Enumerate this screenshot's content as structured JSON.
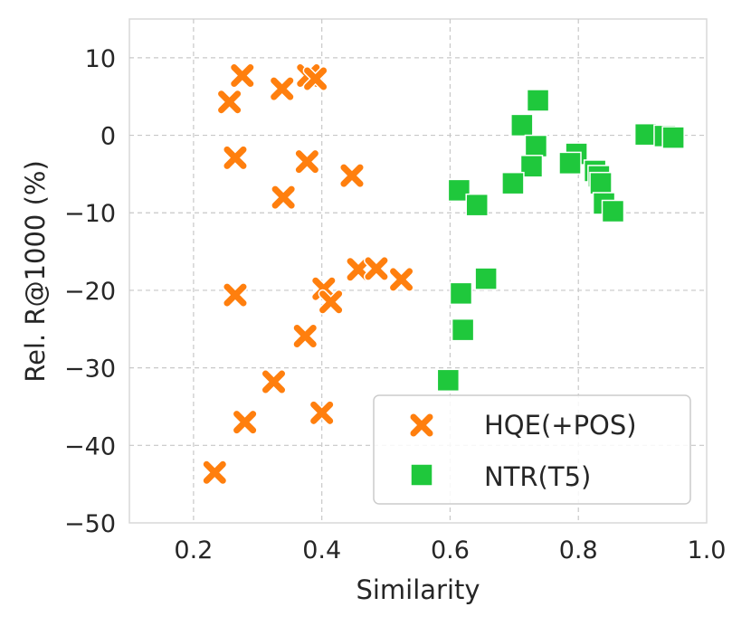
{
  "chart_data": {
    "type": "scatter",
    "xlabel": "Similarity",
    "ylabel": "Rel. R@1000 (%)",
    "xlim": [
      0.1,
      1.0
    ],
    "ylim": [
      -50,
      15
    ],
    "xticks": [
      0.2,
      0.4,
      0.6,
      0.8,
      1.0
    ],
    "xtick_labels": [
      "0.2",
      "0.4",
      "0.6",
      "0.8",
      "1.0"
    ],
    "yticks": [
      10,
      0,
      -10,
      -20,
      -30,
      -40,
      -50
    ],
    "ytick_labels": [
      "10",
      "0",
      "−10",
      "−20",
      "−30",
      "−40",
      "−50"
    ],
    "grid": true,
    "legend_position": "lower-right",
    "series": [
      {
        "name": "HQE(+POS)",
        "marker": "x",
        "color": "#ff7f0e",
        "points": [
          [
            0.276,
            7.7
          ],
          [
            0.256,
            4.3
          ],
          [
            0.338,
            6.0
          ],
          [
            0.379,
            7.7
          ],
          [
            0.39,
            7.3
          ],
          [
            0.265,
            -2.9
          ],
          [
            0.377,
            -3.4
          ],
          [
            0.447,
            -5.2
          ],
          [
            0.34,
            -8.0
          ],
          [
            0.265,
            -20.6
          ],
          [
            0.403,
            -19.8
          ],
          [
            0.414,
            -21.5
          ],
          [
            0.457,
            -17.3
          ],
          [
            0.485,
            -17.2
          ],
          [
            0.524,
            -18.6
          ],
          [
            0.374,
            -25.9
          ],
          [
            0.325,
            -31.8
          ],
          [
            0.28,
            -37.0
          ],
          [
            0.4,
            -35.8
          ],
          [
            0.233,
            -43.5
          ]
        ]
      },
      {
        "name": "NTR(T5)",
        "marker": "s",
        "color": "#1fc83c",
        "points": [
          [
            0.737,
            4.5
          ],
          [
            0.712,
            1.3
          ],
          [
            0.734,
            -1.4
          ],
          [
            0.727,
            -4.0
          ],
          [
            0.698,
            -6.2
          ],
          [
            0.614,
            -7.1
          ],
          [
            0.642,
            -9.0
          ],
          [
            0.797,
            -2.4
          ],
          [
            0.787,
            -3.6
          ],
          [
            0.826,
            -4.6
          ],
          [
            0.832,
            -5.3
          ],
          [
            0.835,
            -6.2
          ],
          [
            0.84,
            -8.8
          ],
          [
            0.854,
            -9.8
          ],
          [
            0.905,
            0.1
          ],
          [
            0.935,
            -0.1
          ],
          [
            0.948,
            -0.3
          ],
          [
            0.617,
            -20.4
          ],
          [
            0.656,
            -18.5
          ],
          [
            0.62,
            -25.1
          ],
          [
            0.597,
            -31.6
          ]
        ]
      }
    ]
  }
}
